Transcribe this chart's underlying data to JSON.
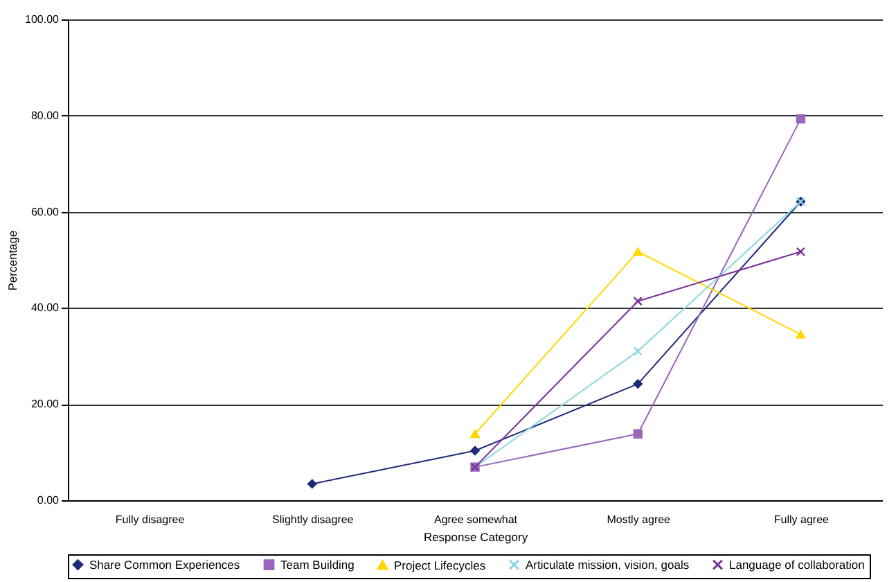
{
  "chart_data": {
    "type": "line",
    "xlabel": "Response Category",
    "ylabel": "Percentage",
    "categories": [
      "Fully disagree",
      "Slightly disagree",
      "Agree somewhat",
      "Mostly agree",
      "Fully agree"
    ],
    "ylim": [
      0,
      100
    ],
    "yticks": [
      {
        "value": 0,
        "label": "0.00"
      },
      {
        "value": 20,
        "label": "20.00"
      },
      {
        "value": 40,
        "label": "40.00"
      },
      {
        "value": 60,
        "label": "60.00"
      },
      {
        "value": 80,
        "label": "80.00"
      },
      {
        "value": 100,
        "label": "100.00"
      }
    ],
    "grid": "y",
    "legend": "bottom",
    "line_style": "solid",
    "series": [
      {
        "name": "Share Common Experiences",
        "color": "#1f2a7a",
        "marker": "diamond",
        "values": [
          null,
          3.4,
          10.3,
          24.2,
          62.1
        ]
      },
      {
        "name": "Team Building",
        "color": "#9966bb",
        "marker": "square",
        "values": [
          null,
          null,
          6.9,
          13.8,
          79.3
        ]
      },
      {
        "name": "Project Lifecycles",
        "color": "#ffd700",
        "marker": "triangle",
        "values": [
          null,
          null,
          13.8,
          51.7,
          34.5
        ]
      },
      {
        "name": "Articulate mission, vision, goals",
        "color": "#88d8e0",
        "marker": "cross",
        "values": [
          null,
          null,
          6.9,
          31.0,
          62.1
        ]
      },
      {
        "name": "Language of collaboration",
        "color": "#7a2f9a",
        "marker": "cross",
        "values": [
          null,
          null,
          6.9,
          41.4,
          51.7
        ]
      }
    ]
  }
}
